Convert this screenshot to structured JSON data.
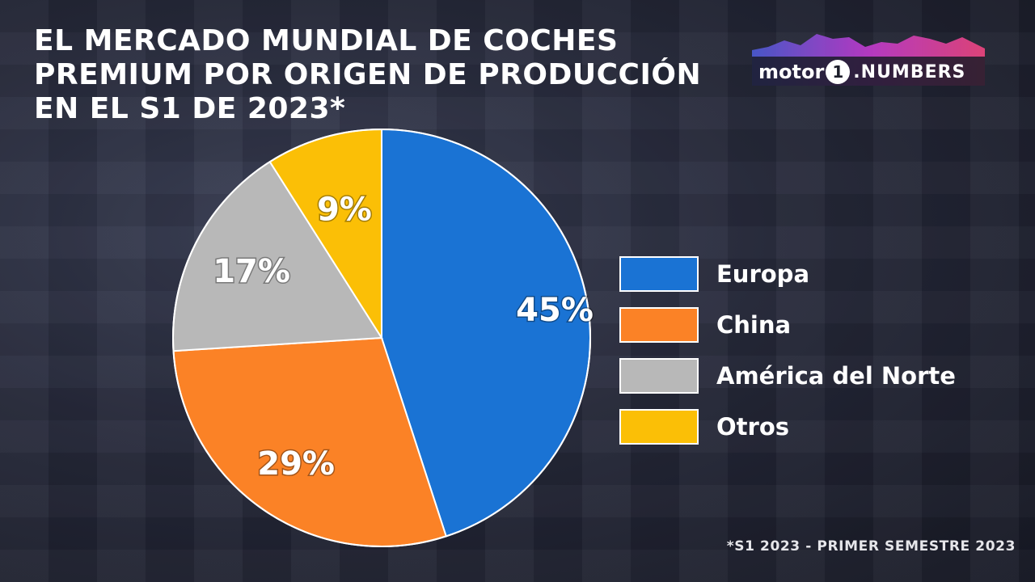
{
  "title": {
    "lines": [
      "EL MERCADO MUNDIAL DE COCHES",
      "PREMIUM POR ORIGEN DE PRODUCCIÓN",
      "EN EL S1 DE 2023*"
    ]
  },
  "logo": {
    "word": "motor",
    "badge": "1",
    "suffix": ".NUMBERS"
  },
  "chart_data": {
    "type": "pie",
    "title": "EL MERCADO MUNDIAL DE COCHES PREMIUM POR ORIGEN DE PRODUCCIÓN EN EL S1 DE 2023*",
    "categories": [
      "Europa",
      "China",
      "América del Norte",
      "Otros"
    ],
    "values": [
      45,
      29,
      17,
      9
    ],
    "labels": [
      "45%",
      "29%",
      "17%",
      "9%"
    ],
    "colors": [
      "#1a73d4",
      "#fb8226",
      "#b8b8b8",
      "#fbbf06"
    ],
    "legend_position": "right",
    "start": "top",
    "direction": "clockwise"
  },
  "footnote": "*S1 2023 - PRIMER SEMESTRE 2023"
}
